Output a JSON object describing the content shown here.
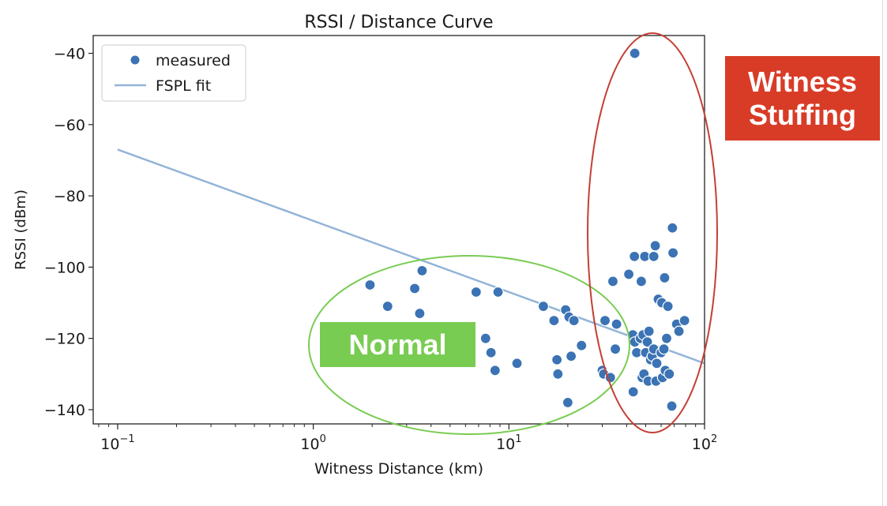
{
  "chart_data": {
    "type": "scatter",
    "title": "RSSI / Distance Curve",
    "xlabel": "Witness Distance (km)",
    "ylabel": "RSSI (dBm)",
    "xscale": "log",
    "xlim": [
      0.075,
      100
    ],
    "ylim": [
      -144,
      -35
    ],
    "x_ticks": [
      {
        "value": 0.1,
        "base": "10",
        "exp": "−1"
      },
      {
        "value": 1,
        "base": "10",
        "exp": "0"
      },
      {
        "value": 10,
        "base": "10",
        "exp": "1"
      },
      {
        "value": 100,
        "base": "10",
        "exp": "2"
      }
    ],
    "y_ticks": [
      {
        "value": -40,
        "label": "−40"
      },
      {
        "value": -60,
        "label": "−60"
      },
      {
        "value": -80,
        "label": "−80"
      },
      {
        "value": -100,
        "label": "−100"
      },
      {
        "value": -120,
        "label": "−120"
      },
      {
        "value": -140,
        "label": "−140"
      }
    ],
    "grid": false,
    "legend_position": "top-left",
    "series": [
      {
        "name": "measured",
        "type": "scatter",
        "color": "#3b73b4",
        "points": [
          [
            1.95,
            -105
          ],
          [
            2.4,
            -111
          ],
          [
            3.3,
            -106
          ],
          [
            3.5,
            -113
          ],
          [
            3.6,
            -101
          ],
          [
            6.8,
            -107
          ],
          [
            7.6,
            -120
          ],
          [
            8.1,
            -124
          ],
          [
            8.5,
            -129
          ],
          [
            8.8,
            -107
          ],
          [
            11.0,
            -127
          ],
          [
            15.0,
            -111
          ],
          [
            17.0,
            -115
          ],
          [
            17.6,
            -126
          ],
          [
            17.8,
            -130
          ],
          [
            19.5,
            -112
          ],
          [
            20.0,
            -138
          ],
          [
            20.3,
            -114
          ],
          [
            20.8,
            -125
          ],
          [
            21.5,
            -115
          ],
          [
            23.5,
            -122
          ],
          [
            30.0,
            -129
          ],
          [
            30.5,
            -130
          ],
          [
            31.0,
            -115
          ],
          [
            33.0,
            -131
          ],
          [
            34.0,
            -104
          ],
          [
            35.0,
            -123
          ],
          [
            35.5,
            -116
          ],
          [
            41.0,
            -102
          ],
          [
            43.0,
            -119
          ],
          [
            43.2,
            -135
          ],
          [
            43.8,
            -97
          ],
          [
            44.0,
            -121
          ],
          [
            44.0,
            -40
          ],
          [
            45.0,
            -124
          ],
          [
            47.0,
            -120
          ],
          [
            47.5,
            -104
          ],
          [
            48.0,
            -131
          ],
          [
            48.5,
            -119
          ],
          [
            49.0,
            -130
          ],
          [
            49.5,
            -97
          ],
          [
            50.0,
            -124
          ],
          [
            51.0,
            -121
          ],
          [
            51.5,
            -132
          ],
          [
            52.0,
            -118
          ],
          [
            53.0,
            -126
          ],
          [
            54.0,
            -125
          ],
          [
            55.0,
            -97
          ],
          [
            55.0,
            -123
          ],
          [
            56.0,
            -94
          ],
          [
            56.5,
            -132
          ],
          [
            57.0,
            -127
          ],
          [
            58.0,
            -109
          ],
          [
            60.0,
            -124
          ],
          [
            60.5,
            -110
          ],
          [
            61.0,
            -131
          ],
          [
            62.0,
            -123
          ],
          [
            62.5,
            -103
          ],
          [
            63.0,
            -129
          ],
          [
            64.0,
            -120
          ],
          [
            65.0,
            -111
          ],
          [
            66.0,
            -130
          ],
          [
            68.0,
            -139
          ],
          [
            68.5,
            -89
          ],
          [
            69.0,
            -96
          ],
          [
            72.0,
            -116
          ],
          [
            74.0,
            -118
          ],
          [
            79.0,
            -115
          ]
        ]
      },
      {
        "name": "FSPL fit",
        "type": "line",
        "color": "#93b4d8",
        "x": [
          0.1,
          100
        ],
        "y": [
          -67,
          -127
        ]
      }
    ]
  },
  "annotations": {
    "normal_ellipse_color": "#78cc52",
    "stuffing_ellipse_color": "#c44034",
    "stuffing_label_line1": "Witness",
    "stuffing_label_line2": "Stuffing",
    "normal_label": "Normal"
  }
}
